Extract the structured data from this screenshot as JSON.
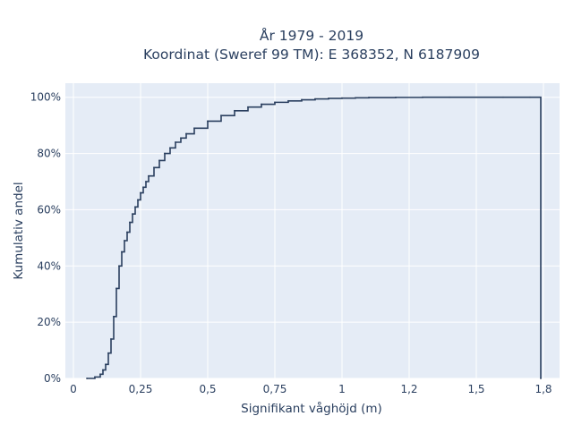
{
  "chart_data": {
    "type": "line",
    "line_shape": "step",
    "title_lines": [
      "År 1979 - 2019",
      "Koordinat (Sweref 99 TM): E 368352, N 6187909"
    ],
    "xlabel": "Signifikant våghöjd (m)",
    "ylabel": "Kumulativ andel",
    "xlim": [
      -0.03,
      1.81
    ],
    "ylim": [
      0,
      1.05
    ],
    "x_ticks": [
      0,
      0.25,
      0.5,
      0.75,
      1,
      1.25,
      1.5,
      1.75
    ],
    "x_tick_labels": [
      "0",
      "0,25",
      "0,5",
      "0,75",
      "1",
      "1,2",
      "1,5",
      "1,8"
    ],
    "y_ticks": [
      0,
      0.2,
      0.4,
      0.6,
      0.8,
      1.0
    ],
    "y_tick_labels": [
      "0%",
      "20%",
      "40%",
      "60%",
      "80%",
      "100%"
    ],
    "grid": true,
    "colors": {
      "plot_bg": "#e5ecf6",
      "grid": "#ffffff",
      "line": "#2a3f5f",
      "text": "#2a3f5f"
    },
    "series": [
      {
        "x": [
          0.05,
          0.08,
          0.1,
          0.11,
          0.12,
          0.13,
          0.14,
          0.15,
          0.16,
          0.17,
          0.18,
          0.19,
          0.2,
          0.21,
          0.22,
          0.23,
          0.24,
          0.25,
          0.26,
          0.27,
          0.28,
          0.3,
          0.32,
          0.34,
          0.36,
          0.38,
          0.4,
          0.42,
          0.45,
          0.5,
          0.55,
          0.6,
          0.65,
          0.7,
          0.75,
          0.8,
          0.85,
          0.9,
          0.95,
          1.0,
          1.05,
          1.1,
          1.2,
          1.3,
          1.4,
          1.5,
          1.6,
          1.7,
          1.74
        ],
        "y": [
          0.0,
          0.005,
          0.015,
          0.03,
          0.05,
          0.09,
          0.14,
          0.22,
          0.32,
          0.4,
          0.45,
          0.49,
          0.52,
          0.555,
          0.585,
          0.61,
          0.635,
          0.66,
          0.68,
          0.7,
          0.72,
          0.75,
          0.775,
          0.8,
          0.82,
          0.84,
          0.855,
          0.87,
          0.89,
          0.915,
          0.935,
          0.952,
          0.965,
          0.975,
          0.982,
          0.987,
          0.991,
          0.994,
          0.996,
          0.997,
          0.998,
          0.999,
          0.9995,
          1.0,
          1.0,
          1.0,
          1.0,
          1.0,
          0.0
        ]
      }
    ]
  }
}
